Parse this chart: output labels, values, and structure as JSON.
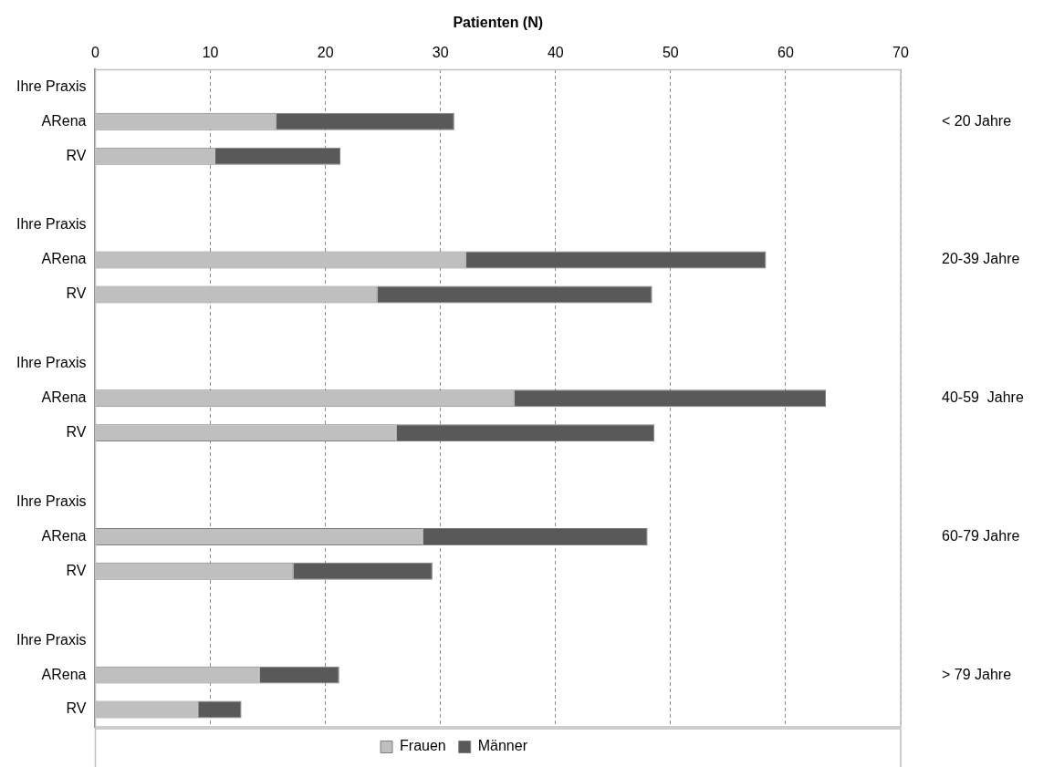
{
  "chart_data": {
    "type": "bar",
    "orientation": "horizontal",
    "stacked": true,
    "xlabel": "Patienten (N)",
    "categories": [
      "Ihre Praxis",
      "ARena",
      "RV",
      null,
      "Ihre Praxis",
      "ARena",
      "RV",
      null,
      "Ihre Praxis",
      "ARena",
      "RV",
      null,
      "Ihre Praxis",
      "ARena",
      "RV",
      null,
      "Ihre Praxis",
      "ARena",
      "RV"
    ],
    "series": [
      {
        "name": "Frauen",
        "color": "#bfbfbf",
        "values": [
          null,
          15.7,
          10.4,
          null,
          null,
          32.2,
          24.5,
          null,
          null,
          36.4,
          26.2,
          null,
          null,
          28.5,
          17.2,
          null,
          null,
          14.3,
          9.0
        ]
      },
      {
        "name": "Männer",
        "color": "#595959",
        "values": [
          null,
          15.5,
          10.9,
          null,
          null,
          26.1,
          23.9,
          null,
          null,
          27.1,
          22.4,
          null,
          null,
          19.5,
          12.1,
          null,
          null,
          6.9,
          3.7
        ]
      }
    ],
    "xlim": [
      0,
      70
    ],
    "xticks": [
      0,
      10,
      20,
      30,
      40,
      50,
      60,
      70
    ],
    "grid": "x",
    "legend": "bottom",
    "annotations": [
      "< 20 Jahre",
      "20-39 Jahre",
      "40-59  Jahre",
      "60-79 Jahre",
      "> 79 Jahre"
    ]
  }
}
